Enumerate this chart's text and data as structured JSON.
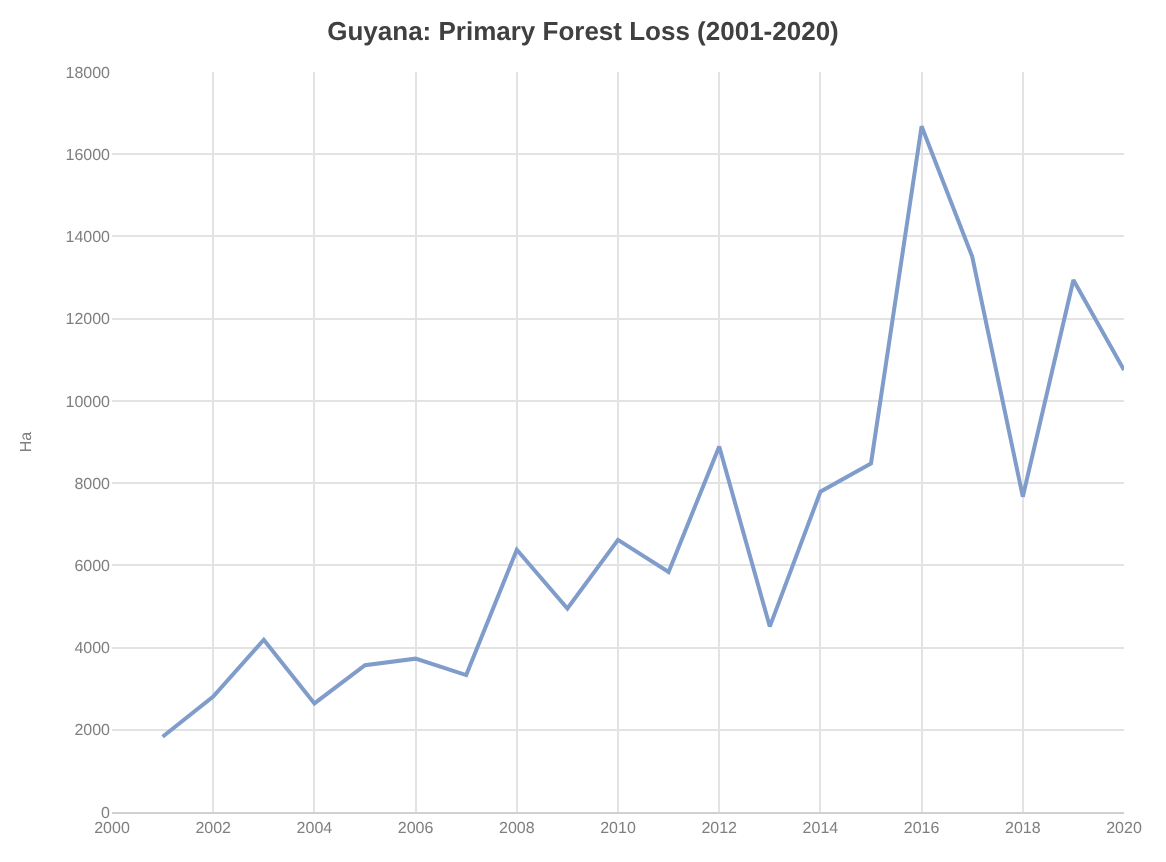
{
  "chart_data": {
    "type": "line",
    "title": "Guyana: Primary Forest Loss (2001-2020)",
    "ylabel": "Ha",
    "x": [
      2001,
      2002,
      2003,
      2004,
      2005,
      2006,
      2007,
      2008,
      2009,
      2010,
      2011,
      2012,
      2013,
      2014,
      2015,
      2016,
      2017,
      2018,
      2019,
      2020
    ],
    "series": [
      {
        "color": "#7f9ccb",
        "values": [
          1830,
          2810,
          4190,
          2640,
          3570,
          3730,
          3330,
          6380,
          4950,
          6620,
          5840,
          8890,
          4510,
          7790,
          8480,
          16680,
          13510,
          7670,
          12940,
          10750
        ]
      }
    ],
    "xlim": [
      2000,
      2020
    ],
    "xticks": [
      2000,
      2002,
      2004,
      2006,
      2008,
      2010,
      2012,
      2014,
      2016,
      2018,
      2020
    ],
    "ylim": [
      0,
      18000
    ],
    "yticks": [
      0,
      2000,
      4000,
      6000,
      8000,
      10000,
      12000,
      14000,
      16000,
      18000
    ],
    "grid": true,
    "marker": "none",
    "line_style": "solid"
  }
}
